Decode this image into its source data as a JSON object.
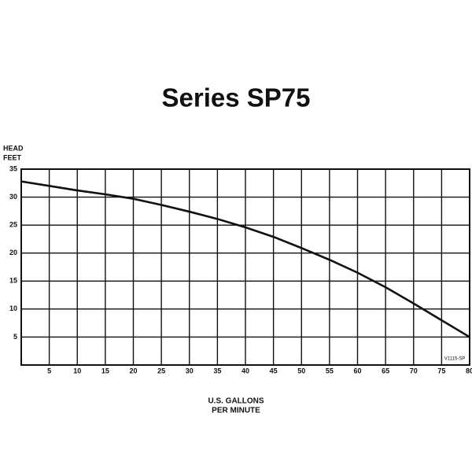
{
  "chart_data": {
    "type": "line",
    "title": "Series SP75",
    "y_label": [
      "HEAD",
      "FEET"
    ],
    "x_label": [
      "U.S. GALLONS",
      "PER MINUTE"
    ],
    "annotation": "V1115-SP",
    "x": [
      0,
      5,
      10,
      15,
      20,
      25,
      30,
      35,
      40,
      45,
      50,
      55,
      60,
      65,
      70,
      75,
      80
    ],
    "series": [
      {
        "name": "SP75",
        "color": "#111111",
        "values": [
          32.8,
          32,
          31.2,
          30.5,
          29.7,
          28.6,
          27.4,
          26.1,
          24.6,
          22.9,
          20.9,
          18.8,
          16.5,
          13.9,
          11,
          8,
          5
        ]
      }
    ],
    "xlim": [
      0,
      80
    ],
    "ylim": [
      0,
      35
    ],
    "xticks": [
      5,
      10,
      15,
      20,
      25,
      30,
      35,
      40,
      45,
      50,
      55,
      60,
      65,
      70,
      75,
      80
    ],
    "yticks": [
      5,
      10,
      15,
      20,
      25,
      30,
      35
    ],
    "grid": true
  }
}
